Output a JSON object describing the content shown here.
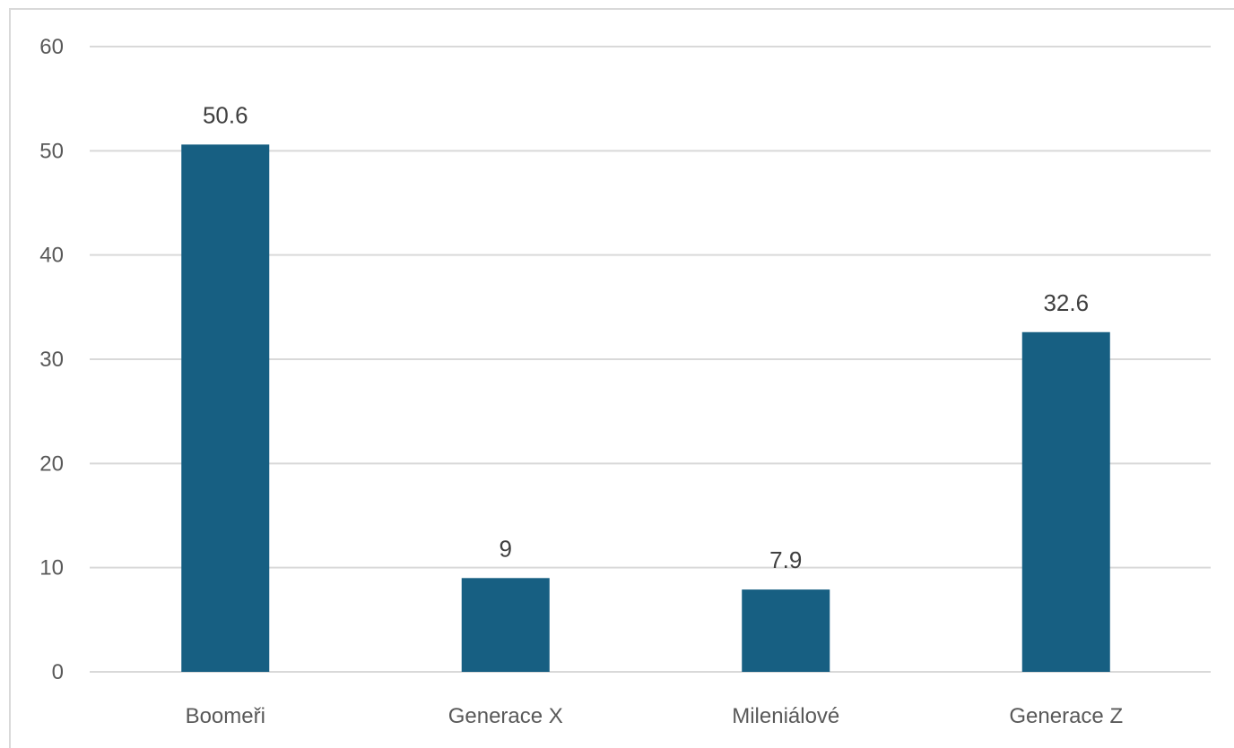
{
  "chart_data": {
    "type": "bar",
    "categories": [
      "Boomeři",
      "Generace X",
      "Mileniálové",
      "Generace Z"
    ],
    "values": [
      50.6,
      9,
      7.9,
      32.6
    ],
    "data_labels": [
      "50.6",
      "9",
      "7.9",
      "32.6"
    ],
    "title": "",
    "xlabel": "",
    "ylabel": "",
    "ylim": [
      0,
      60
    ],
    "yticks": [
      "0",
      "10",
      "20",
      "30",
      "40",
      "50",
      "60"
    ],
    "grid": true,
    "legend": "none",
    "bar_color": "#175F82",
    "grid_color": "#d9d9d9"
  }
}
